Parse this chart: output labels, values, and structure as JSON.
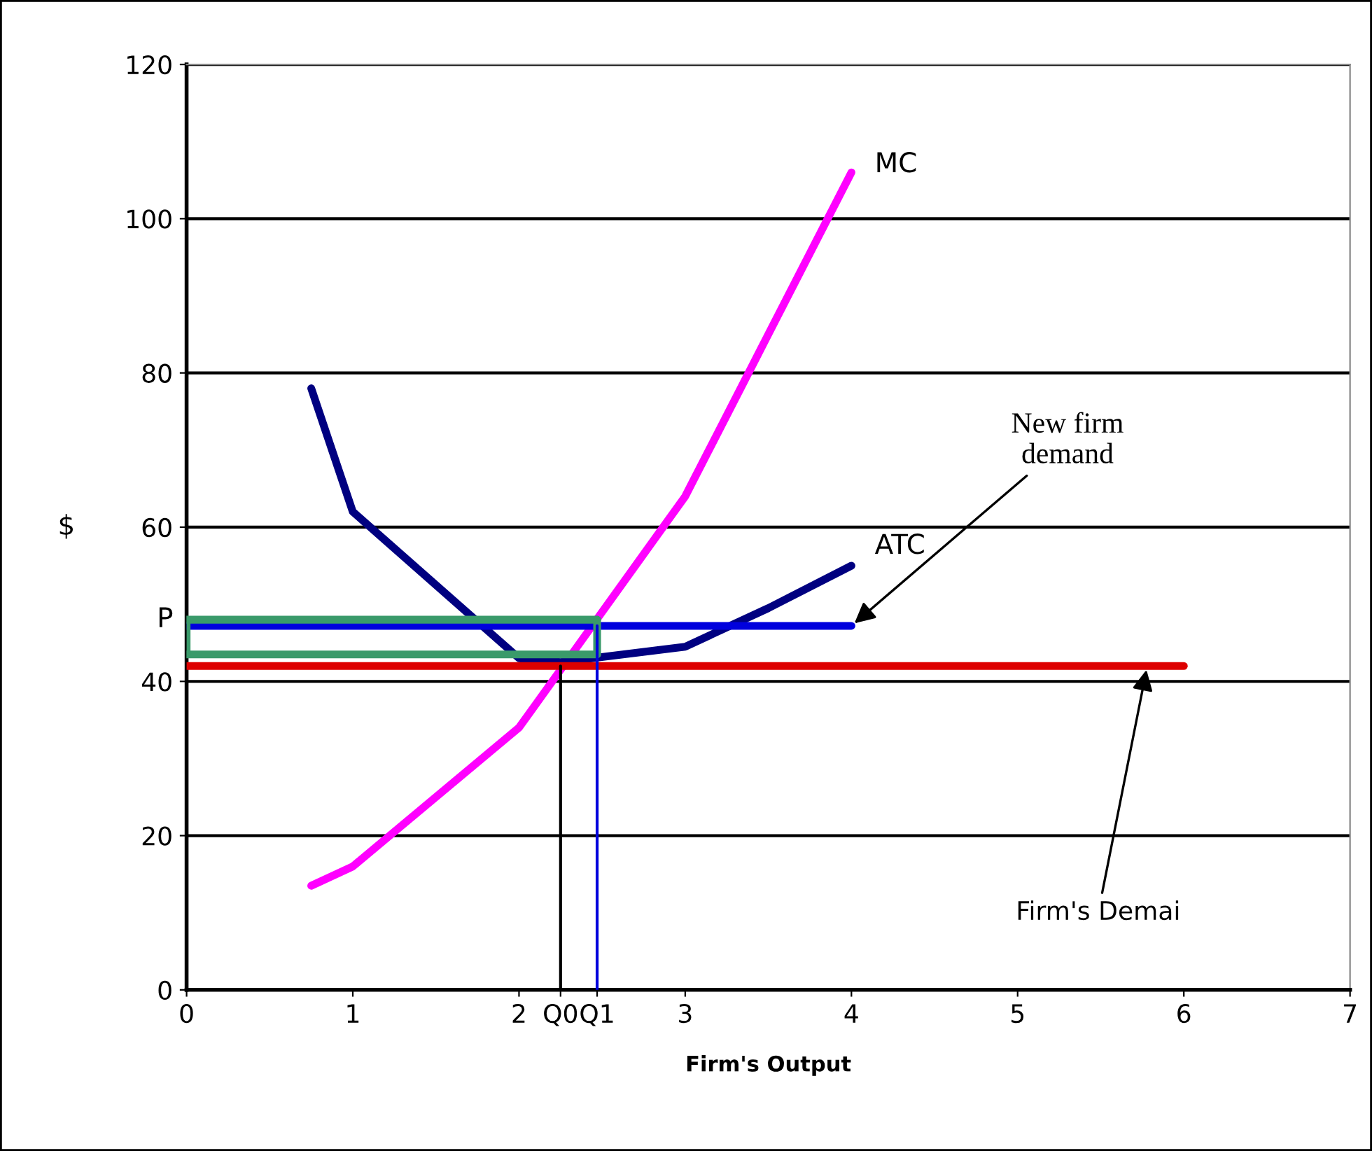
{
  "chart_data": {
    "type": "line",
    "xlabel": "Firm's Output",
    "ylabel": "$",
    "xlim": [
      0,
      7
    ],
    "ylim": [
      0,
      120
    ],
    "xticks": [
      0,
      1,
      2,
      {
        "value": 2.25,
        "label": "Q0"
      },
      {
        "value": 2.47,
        "label": "Q1"
      },
      3,
      4,
      5,
      6,
      7
    ],
    "yticks": [
      0,
      20,
      40,
      60,
      80,
      100,
      120
    ],
    "grid": "y",
    "marker": "none",
    "line_style": "solid",
    "series": [
      {
        "name": "MC",
        "color": "#ff00ff",
        "x": [
          0.75,
          1,
          2,
          3,
          3.5,
          4
        ],
        "values": [
          13.5,
          16,
          34,
          64,
          85,
          106
        ]
      },
      {
        "name": "ATC",
        "color": "#000080",
        "x": [
          0.75,
          1,
          2,
          2.25,
          3,
          3.5,
          4
        ],
        "values": [
          78,
          62,
          43,
          42.5,
          44.5,
          49.5,
          55
        ]
      },
      {
        "color": "#dd0000",
        "x": [
          0,
          6
        ],
        "values": [
          42,
          42
        ]
      },
      {
        "color": "#0000dd",
        "x": [
          0,
          4
        ],
        "values": [
          47.2,
          47.2
        ]
      },
      {
        "color": "#3a9a6a",
        "x": [
          0,
          2.47
        ],
        "values": [
          48,
          48
        ]
      },
      {
        "color": "#3a9a6a",
        "x": [
          0,
          2.47
        ],
        "values": [
          43.5,
          43.5
        ]
      },
      {
        "color": "#3a9a6a",
        "x": [
          2.47,
          2.47
        ],
        "values": [
          43.5,
          48
        ]
      },
      {
        "color": "#3a9a6a",
        "x": [
          0,
          0
        ],
        "values": [
          43.5,
          48
        ]
      },
      {
        "color": "#000000",
        "x": [
          2.25,
          2.25
        ],
        "values": [
          0,
          42
        ]
      },
      {
        "color": "#0000dd",
        "x": [
          2.47,
          2.47
        ],
        "values": [
          0,
          47.2
        ]
      }
    ],
    "annotations": [
      {
        "text": "New firm demand",
        "x": 4,
        "y": 47.2
      },
      {
        "text": "Firm's Demai",
        "x": 5.78,
        "y": 42
      },
      {
        "text": "P",
        "x": 0,
        "y": 48
      }
    ]
  }
}
